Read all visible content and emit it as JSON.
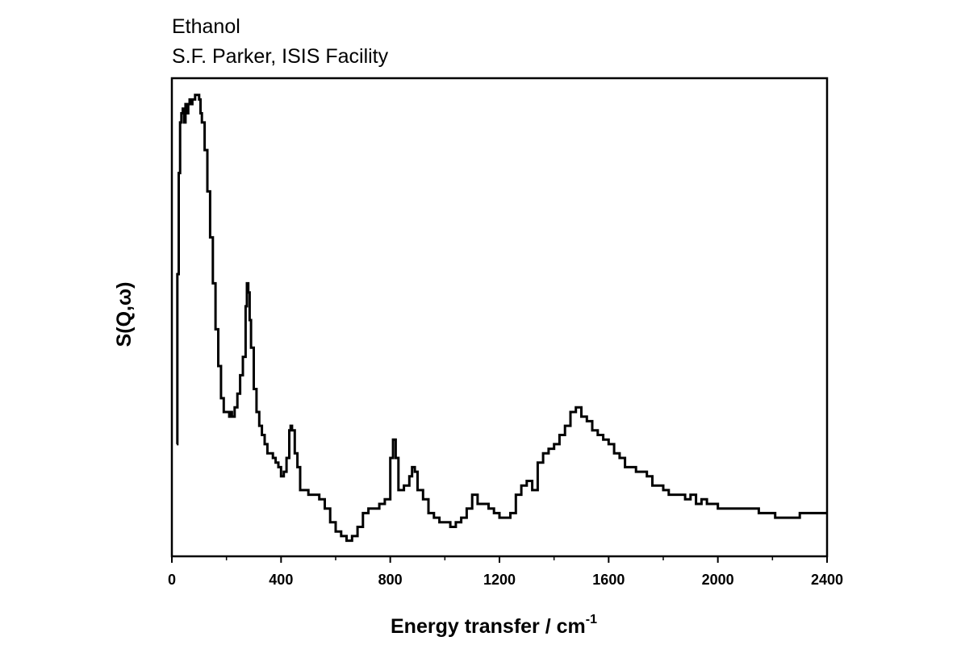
{
  "title": "Ethanol",
  "subtitle": "S.F. Parker, ISIS Facility",
  "chart_data": {
    "type": "line",
    "title": "Ethanol",
    "subtitle": "S.F. Parker, ISIS Facility",
    "xlabel": "Energy transfer / cm",
    "xlabel_superscript": "-1",
    "ylabel": "S(Q,ω)",
    "xlim": [
      0,
      2400
    ],
    "ylim": [
      0,
      1
    ],
    "xticks": [
      0,
      400,
      800,
      1200,
      1600,
      2000,
      2400
    ],
    "xtick_labels": [
      "0",
      "400",
      "800",
      "1200",
      "1600",
      "2000",
      "2400"
    ],
    "yticks_shown": false,
    "grid": false,
    "line_color": "#000000",
    "series": [
      {
        "x": [
          18,
          20,
          25,
          30,
          35,
          40,
          45,
          50,
          55,
          60,
          65,
          70,
          75,
          80,
          85,
          90,
          95,
          100,
          105,
          110,
          120,
          130,
          140,
          150,
          160,
          170,
          180,
          190,
          200,
          210,
          215,
          220,
          230,
          240,
          250,
          260,
          270,
          275,
          280,
          285,
          290,
          300,
          310,
          320,
          330,
          340,
          350,
          360,
          370,
          380,
          390,
          400,
          410,
          420,
          430,
          435,
          440,
          450,
          460,
          470,
          480,
          500,
          520,
          540,
          560,
          580,
          600,
          620,
          640,
          660,
          680,
          700,
          720,
          740,
          760,
          780,
          800,
          810,
          820,
          830,
          840,
          850,
          860,
          870,
          880,
          890,
          900,
          920,
          940,
          960,
          980,
          1000,
          1020,
          1040,
          1060,
          1080,
          1100,
          1120,
          1140,
          1160,
          1180,
          1200,
          1220,
          1240,
          1260,
          1280,
          1300,
          1320,
          1340,
          1360,
          1380,
          1400,
          1420,
          1440,
          1460,
          1480,
          1500,
          1520,
          1540,
          1560,
          1580,
          1600,
          1620,
          1640,
          1660,
          1680,
          1700,
          1720,
          1740,
          1760,
          1780,
          1800,
          1820,
          1840,
          1860,
          1880,
          1900,
          1920,
          1940,
          1960,
          1980,
          2000,
          2050,
          2100,
          2150,
          2200,
          2210,
          2250,
          2300,
          2350,
          2400
        ],
        "y": [
          0.23,
          0.6,
          0.82,
          0.93,
          0.95,
          0.96,
          0.93,
          0.97,
          0.95,
          0.97,
          0.98,
          0.97,
          0.98,
          0.98,
          0.99,
          0.99,
          0.99,
          0.98,
          0.95,
          0.93,
          0.87,
          0.78,
          0.68,
          0.58,
          0.48,
          0.4,
          0.33,
          0.3,
          0.3,
          0.29,
          0.3,
          0.29,
          0.31,
          0.34,
          0.38,
          0.42,
          0.53,
          0.58,
          0.56,
          0.5,
          0.44,
          0.35,
          0.3,
          0.27,
          0.25,
          0.23,
          0.21,
          0.21,
          0.2,
          0.19,
          0.18,
          0.16,
          0.17,
          0.2,
          0.26,
          0.27,
          0.26,
          0.21,
          0.18,
          0.13,
          0.13,
          0.12,
          0.12,
          0.11,
          0.09,
          0.06,
          0.04,
          0.03,
          0.02,
          0.03,
          0.05,
          0.08,
          0.09,
          0.09,
          0.1,
          0.11,
          0.2,
          0.24,
          0.2,
          0.13,
          0.13,
          0.14,
          0.14,
          0.16,
          0.18,
          0.17,
          0.13,
          0.11,
          0.08,
          0.07,
          0.06,
          0.06,
          0.05,
          0.06,
          0.07,
          0.09,
          0.12,
          0.1,
          0.1,
          0.09,
          0.08,
          0.07,
          0.07,
          0.08,
          0.12,
          0.14,
          0.15,
          0.13,
          0.19,
          0.21,
          0.22,
          0.23,
          0.25,
          0.27,
          0.3,
          0.31,
          0.29,
          0.28,
          0.26,
          0.25,
          0.24,
          0.23,
          0.21,
          0.2,
          0.18,
          0.18,
          0.17,
          0.17,
          0.16,
          0.14,
          0.14,
          0.13,
          0.12,
          0.12,
          0.12,
          0.11,
          0.12,
          0.1,
          0.11,
          0.1,
          0.1,
          0.09,
          0.09,
          0.09,
          0.08,
          0.08,
          0.07,
          0.07,
          0.08,
          0.08,
          0.08
        ]
      }
    ]
  }
}
